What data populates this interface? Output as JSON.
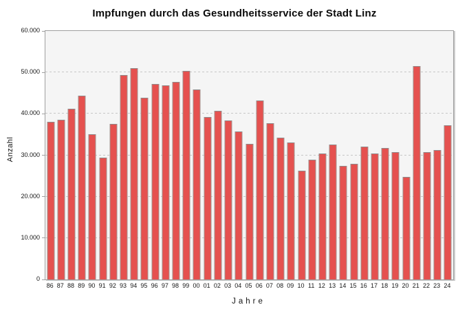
{
  "chart_data": {
    "type": "bar",
    "title": "Impfungen durch das Gesundheitsservice der Stadt Linz",
    "xlabel": "Jahre",
    "ylabel": "Anzahl",
    "ylim": [
      0,
      60000
    ],
    "ytick_labels": [
      "0",
      "10.000",
      "20.000",
      "30.000",
      "40.000",
      "50.000",
      "60.000"
    ],
    "grid": true,
    "legend": false,
    "bar_color": "#e5514f",
    "plot_background": "#f5f5f5",
    "categories": [
      "86",
      "87",
      "88",
      "89",
      "90",
      "91",
      "92",
      "93",
      "94",
      "95",
      "96",
      "97",
      "98",
      "99",
      "00",
      "01",
      "02",
      "03",
      "04",
      "05",
      "06",
      "07",
      "08",
      "09",
      "10",
      "11",
      "12",
      "13",
      "14",
      "15",
      "16",
      "17",
      "18",
      "19",
      "20",
      "21",
      "22",
      "23",
      "24"
    ],
    "values": [
      38100,
      38600,
      41300,
      44300,
      35100,
      29500,
      37500,
      49400,
      51100,
      43800,
      47200,
      46800,
      47700,
      50400,
      45800,
      39300,
      40800,
      38400,
      35700,
      32800,
      43200,
      37700,
      34300,
      33000,
      26300,
      29000,
      30400,
      32600,
      27400,
      27900,
      32100,
      30500,
      31700,
      30700,
      24800,
      51500,
      30800,
      31200,
      37200
    ]
  }
}
